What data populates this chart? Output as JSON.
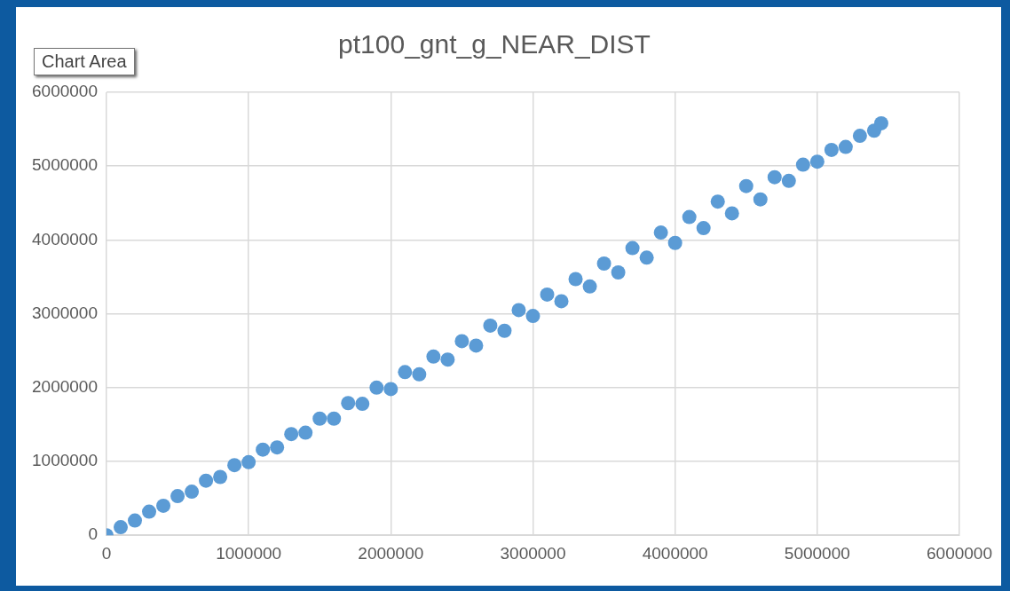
{
  "chart_data": {
    "type": "scatter",
    "title": "pt100_gnt_g_NEAR_DIST",
    "annotations": [
      "Chart Area"
    ],
    "xlim": [
      0,
      6000000
    ],
    "xticks": [
      0,
      1000000,
      2000000,
      3000000,
      4000000,
      5000000,
      6000000
    ],
    "ylim": [
      0,
      6000000
    ],
    "yticks": [
      0,
      1000000,
      2000000,
      3000000,
      4000000,
      5000000,
      6000000
    ],
    "grid": true,
    "legend": false,
    "marker": "circle",
    "series": [
      {
        "color": "#5b9bd5",
        "x": [
          0,
          100000,
          200000,
          300000,
          400000,
          500000,
          600000,
          700000,
          800000,
          900000,
          1000000,
          1100000,
          1200000,
          1300000,
          1400000,
          1500000,
          1600000,
          1700000,
          1800000,
          1900000,
          2000000,
          2100000,
          2200000,
          2300000,
          2400000,
          2500000,
          2600000,
          2700000,
          2800000,
          2900000,
          3000000,
          3100000,
          3200000,
          3300000,
          3400000,
          3500000,
          3600000,
          3700000,
          3800000,
          3900000,
          4000000,
          4100000,
          4200000,
          4300000,
          4400000,
          4500000,
          4600000,
          4700000,
          4800000,
          4900000,
          5000000,
          5100000,
          5200000,
          5300000,
          5400000,
          5450000
        ],
        "values": [
          0,
          110000,
          200000,
          320000,
          400000,
          530000,
          590000,
          740000,
          790000,
          950000,
          990000,
          1160000,
          1190000,
          1370000,
          1390000,
          1580000,
          1580000,
          1790000,
          1780000,
          2000000,
          1980000,
          2210000,
          2180000,
          2420000,
          2380000,
          2630000,
          2570000,
          2840000,
          2770000,
          3050000,
          2970000,
          3260000,
          3170000,
          3470000,
          3370000,
          3680000,
          3560000,
          3890000,
          3760000,
          4100000,
          3960000,
          4310000,
          4160000,
          4520000,
          4360000,
          4730000,
          4550000,
          4850000,
          4800000,
          5020000,
          5060000,
          5220000,
          5260000,
          5410000,
          5480000,
          5580000
        ]
      }
    ]
  }
}
